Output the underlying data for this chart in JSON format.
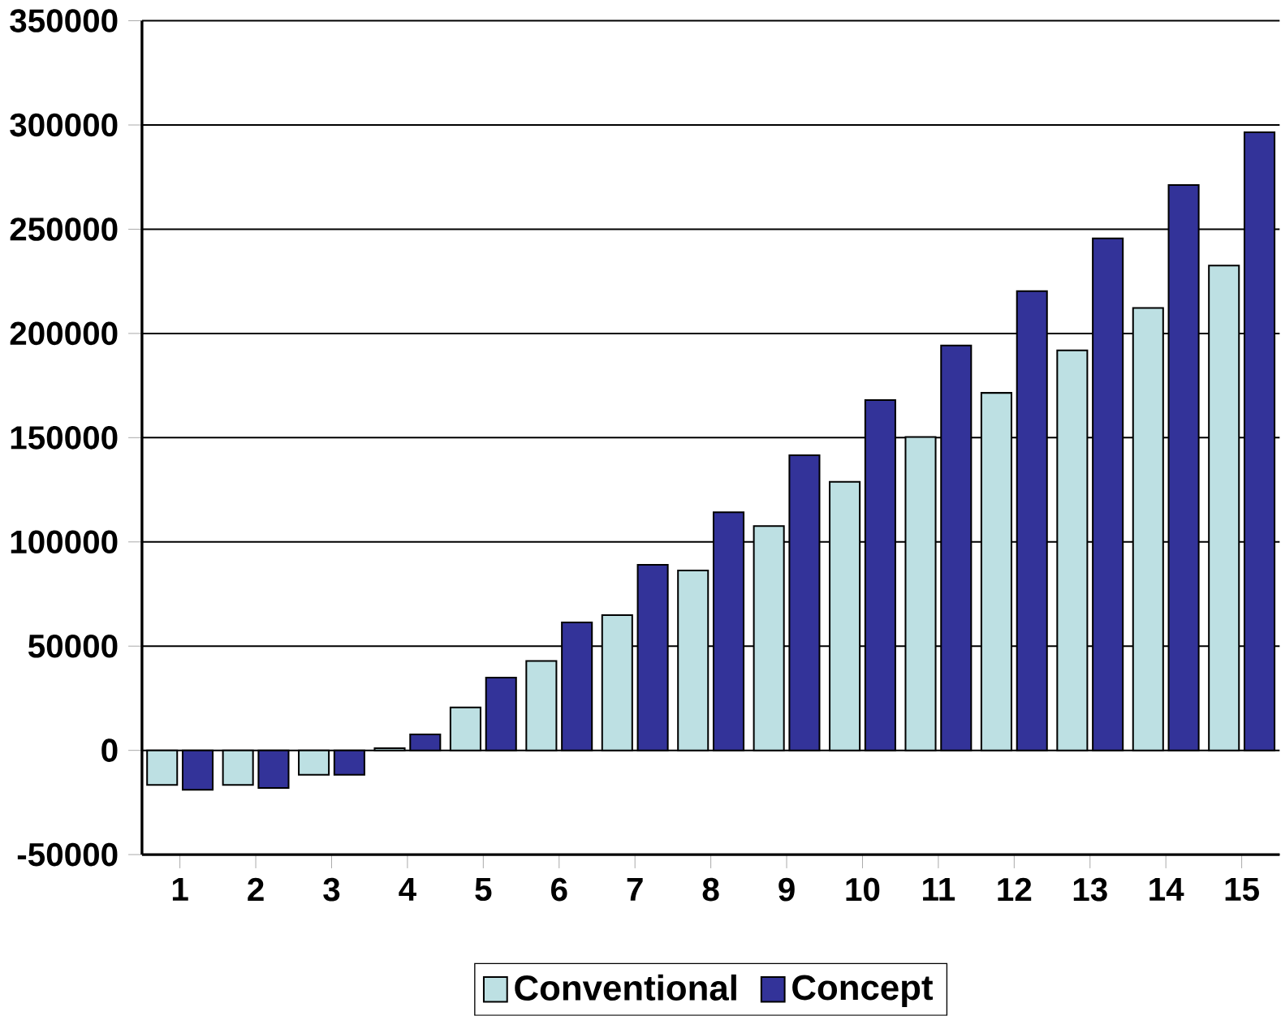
{
  "chart_data": {
    "type": "bar",
    "categories": [
      "1",
      "2",
      "3",
      "4",
      "5",
      "6",
      "7",
      "8",
      "9",
      "10",
      "11",
      "12",
      "13",
      "14",
      "15"
    ],
    "series": [
      {
        "name": "Conventional",
        "color": "#bde0e3",
        "values": [
          -16600,
          -16600,
          -11700,
          1000,
          20600,
          42900,
          64900,
          86300,
          107600,
          128800,
          150300,
          171500,
          191900,
          212200,
          232600
        ]
      },
      {
        "name": "Concept",
        "color": "#333399",
        "values": [
          -18900,
          -18000,
          -11700,
          7700,
          34900,
          61400,
          89000,
          114200,
          141600,
          168000,
          194200,
          220300,
          245600,
          271200,
          296500
        ]
      }
    ],
    "ylim": [
      -50000,
      350000
    ],
    "yticks": [
      -50000,
      0,
      50000,
      100000,
      150000,
      200000,
      250000,
      300000,
      350000
    ],
    "grid": "y",
    "legend": "bottom"
  }
}
